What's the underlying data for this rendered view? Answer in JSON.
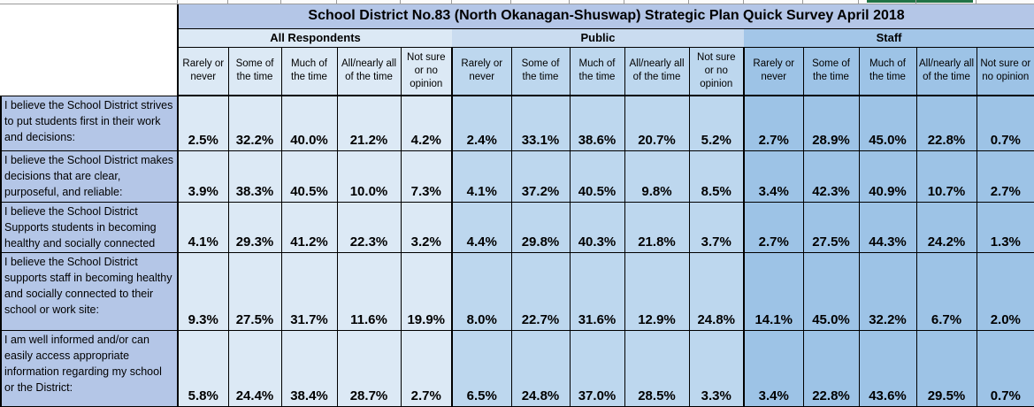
{
  "title": "School District No.83 (North Okanagan-Shuswap) Strategic Plan Quick Survey April 2018",
  "groups": [
    {
      "key": "all_respondents",
      "label": "All Respondents"
    },
    {
      "key": "public",
      "label": "Public"
    },
    {
      "key": "staff",
      "label": "Staff"
    }
  ],
  "response_options": [
    "Rarely or never",
    "Some of the time",
    "Much of the time",
    "All/nearly all of the time",
    "Not sure or no opinion"
  ],
  "rows": [
    {
      "question": "I believe the School District strives to put students first in their work and decisions:",
      "all_respondents": [
        "2.5%",
        "32.2%",
        "40.0%",
        "21.2%",
        "4.2%"
      ],
      "public": [
        "2.4%",
        "33.1%",
        "38.6%",
        "20.7%",
        "5.2%"
      ],
      "staff": [
        "2.7%",
        "28.9%",
        "45.0%",
        "22.8%",
        "0.7%"
      ]
    },
    {
      "question": "I believe the School District makes decisions that are clear, purposeful, and reliable:",
      "all_respondents": [
        "3.9%",
        "38.3%",
        "40.5%",
        "10.0%",
        "7.3%"
      ],
      "public": [
        "4.1%",
        "37.2%",
        "40.5%",
        "9.8%",
        "8.5%"
      ],
      "staff": [
        "3.4%",
        "42.3%",
        "40.9%",
        "10.7%",
        "2.7%"
      ]
    },
    {
      "question": "I believe the School District Supports students in becoming healthy and socially connected",
      "all_respondents": [
        "4.1%",
        "29.3%",
        "41.2%",
        "22.3%",
        "3.2%"
      ],
      "public": [
        "4.4%",
        "29.8%",
        "40.3%",
        "21.8%",
        "3.7%"
      ],
      "staff": [
        "2.7%",
        "27.5%",
        "44.3%",
        "24.2%",
        "1.3%"
      ]
    },
    {
      "question": "I believe the School District supports staff in becoming healthy and socially connected to their school or work site:",
      "all_respondents": [
        "9.3%",
        "27.5%",
        "31.7%",
        "11.6%",
        "19.9%"
      ],
      "public": [
        "8.0%",
        "22.7%",
        "31.6%",
        "12.9%",
        "24.8%"
      ],
      "staff": [
        "14.1%",
        "45.0%",
        "32.2%",
        "6.7%",
        "2.0%"
      ]
    },
    {
      "question": "I am well informed and/or can easily access appropriate information regarding my school or the District:",
      "all_respondents": [
        "5.8%",
        "24.4%",
        "38.4%",
        "28.7%",
        "2.7%"
      ],
      "public": [
        "6.5%",
        "24.8%",
        "37.0%",
        "28.5%",
        "3.3%"
      ],
      "staff": [
        "3.4%",
        "22.8%",
        "43.6%",
        "29.5%",
        "0.7%"
      ]
    }
  ],
  "colors": {
    "title_bg": "#b4c6e7",
    "question_bg": "#b4c6e7",
    "all_respondents_bg": "#dce9f5",
    "all_respondents_band_bg": "#dce9f5",
    "public_bg": "#bdd7ee",
    "public_band_bg": "#cadcf0",
    "staff_bg": "#9dc3e6",
    "staff_band_bg": "#a3c6e8",
    "selection_mark": "#217346"
  }
}
